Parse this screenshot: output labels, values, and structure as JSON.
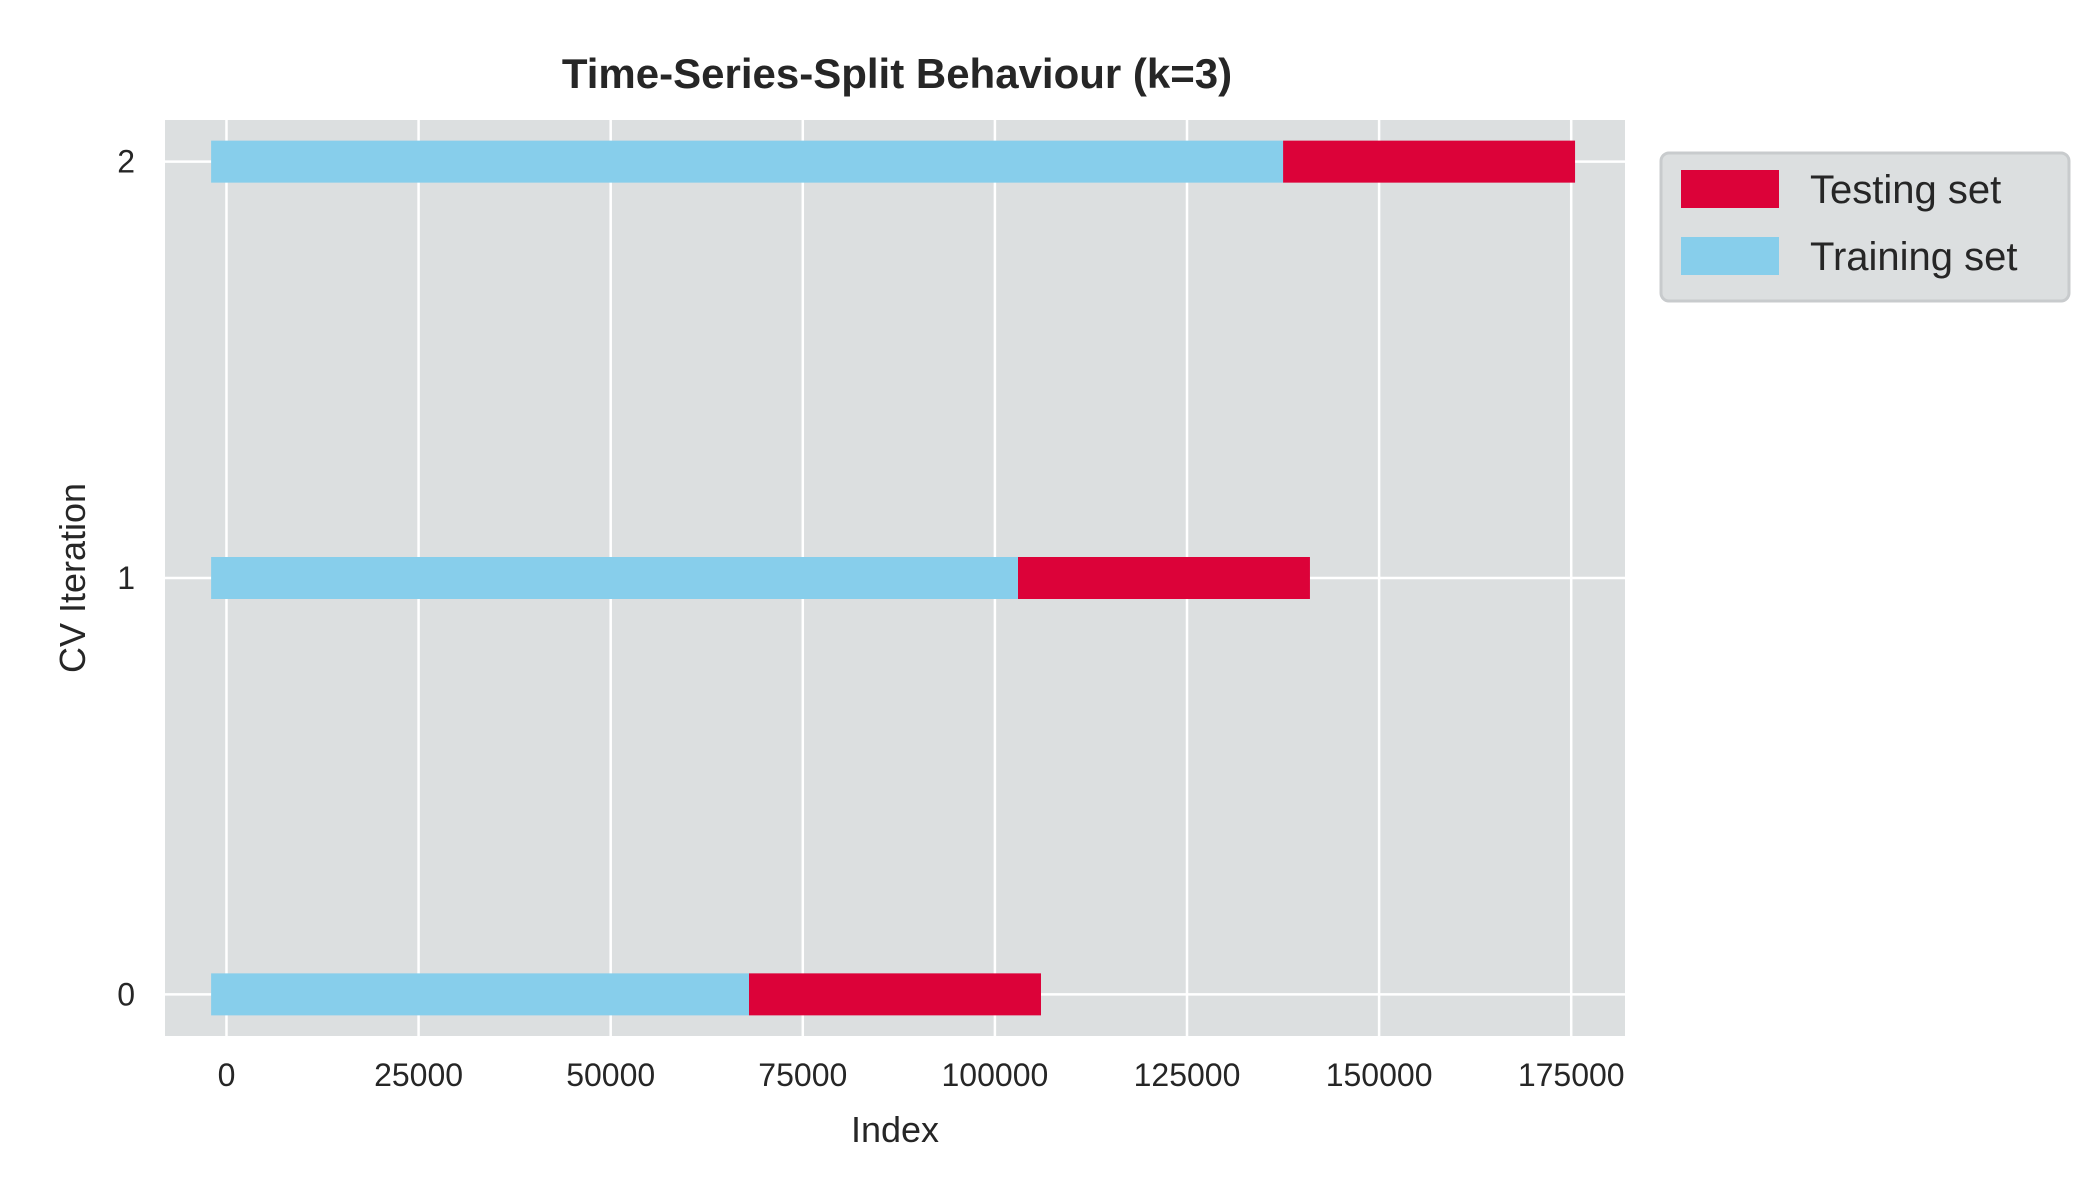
{
  "chart_data": {
    "type": "bar",
    "orientation": "horizontal-stacked",
    "title": "Time-Series-Split Behaviour (k=3)",
    "xlabel": "Index",
    "ylabel": "CV Iteration",
    "xlim": [
      -8000,
      182000
    ],
    "ylim": [
      -0.1,
      2.1
    ],
    "x_ticks": [
      0,
      25000,
      50000,
      75000,
      100000,
      125000,
      150000,
      175000
    ],
    "x_tick_labels": [
      "0",
      "25000",
      "50000",
      "75000",
      "100000",
      "125000",
      "150000",
      "175000"
    ],
    "y_ticks": [
      0,
      1,
      2
    ],
    "y_tick_labels": [
      "0",
      "1",
      "2"
    ],
    "grid": true,
    "legend_position": "outside top-right",
    "series": [
      {
        "name": "Testing set",
        "color": "#dc0239",
        "segments": [
          {
            "iteration": 0,
            "start": 68000,
            "end": 106000
          },
          {
            "iteration": 1,
            "start": 103000,
            "end": 141000
          },
          {
            "iteration": 2,
            "start": 137500,
            "end": 175500
          }
        ]
      },
      {
        "name": "Training set",
        "color": "#87ceeb",
        "segments": [
          {
            "iteration": 0,
            "start": -2000,
            "end": 68000
          },
          {
            "iteration": 1,
            "start": -2000,
            "end": 103000
          },
          {
            "iteration": 2,
            "start": -2000,
            "end": 137500
          }
        ]
      }
    ],
    "colors": {
      "plot_background": "#dcdfe0",
      "grid": "#ffffff",
      "text": "#262626"
    }
  }
}
